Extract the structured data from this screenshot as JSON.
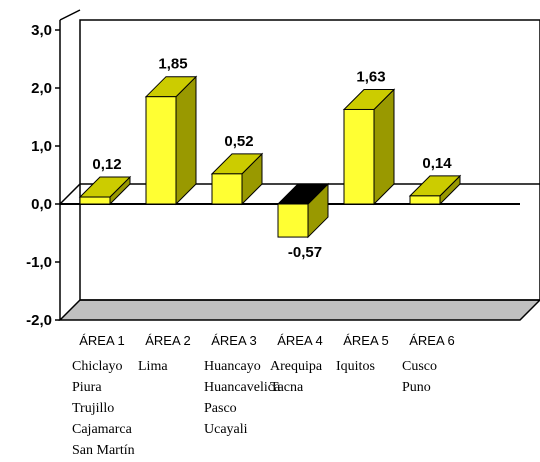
{
  "chart_data": {
    "type": "bar",
    "categories": [
      "ÁREA 1",
      "ÁREA 2",
      "ÁREA 3",
      "ÁREA 4",
      "ÁREA 5",
      "ÁREA 6"
    ],
    "values": [
      0.12,
      1.85,
      0.52,
      -0.57,
      1.63,
      0.14
    ],
    "data_labels": [
      "0,12",
      "1,85",
      "0,52",
      "-0,57",
      "1,63",
      "0,14"
    ],
    "cities": [
      [
        "Chiclayo",
        "Piura",
        "Trujillo",
        "Cajamarca",
        "San Martín"
      ],
      [
        "Lima"
      ],
      [
        "Huancayo",
        "Huancavelica",
        "Pasco",
        "Ucayali"
      ],
      [
        "Arequipa",
        "Tacna"
      ],
      [
        "Iquitos"
      ],
      [
        "Cusco",
        "Puno"
      ]
    ],
    "y_ticks": [
      "3,0",
      "2,0",
      "1,0",
      "0,0",
      "-1,0",
      "-2,0"
    ],
    "ylim": [
      -2.0,
      3.0
    ],
    "grid": false,
    "colors": {
      "positive_front": "#ffff33",
      "positive_side": "#999900",
      "positive_top": "#cccc00",
      "negative_top": "#000000",
      "floor": "#c0c0c0"
    }
  }
}
